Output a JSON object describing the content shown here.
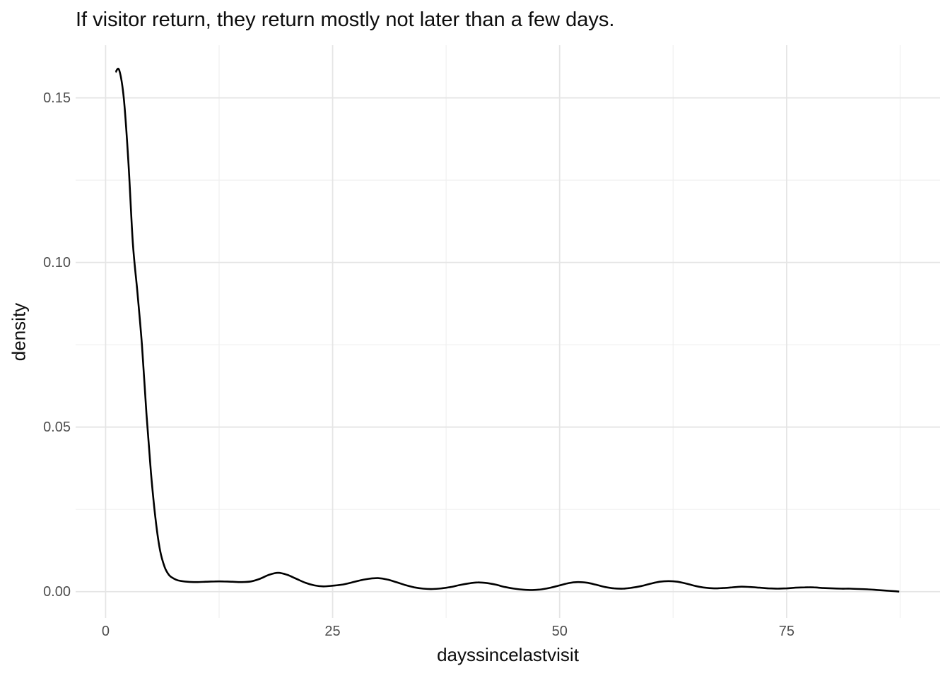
{
  "chart_data": {
    "type": "line",
    "title": "If visitor return, they return mostly not later than a few days.",
    "xlabel": "dayssincelastvisit",
    "ylabel": "density",
    "xlim": [
      -3.3,
      91.9
    ],
    "ylim": [
      -0.008,
      0.166
    ],
    "grid": "major+minor",
    "legend": "none",
    "x_ticks": {
      "values": [
        0,
        25,
        50,
        75
      ],
      "labels": [
        "0",
        "25",
        "50",
        "75"
      ],
      "minor": [
        12.5,
        37.5,
        62.5,
        87.5
      ]
    },
    "y_ticks": {
      "values": [
        0,
        0.05,
        0.1,
        0.15
      ],
      "labels": [
        "0.00",
        "0.05",
        "0.10",
        "0.15"
      ],
      "minor": [
        0.025,
        0.075,
        0.125
      ]
    },
    "series": [
      {
        "name": "density",
        "color": "#000000",
        "points": [
          [
            1.1,
            0.1578
          ],
          [
            1.5,
            0.1584
          ],
          [
            2,
            0.15
          ],
          [
            2.5,
            0.131
          ],
          [
            3,
            0.106
          ],
          [
            3.5,
            0.091
          ],
          [
            4,
            0.075
          ],
          [
            4.5,
            0.054
          ],
          [
            5,
            0.036
          ],
          [
            5.5,
            0.022
          ],
          [
            6,
            0.0125
          ],
          [
            6.5,
            0.0075
          ],
          [
            7,
            0.005
          ],
          [
            7.5,
            0.004
          ],
          [
            8,
            0.0034
          ],
          [
            9,
            0.003
          ],
          [
            10,
            0.0029
          ],
          [
            11,
            0.003
          ],
          [
            12,
            0.0031
          ],
          [
            13,
            0.0031
          ],
          [
            14,
            0.003
          ],
          [
            15,
            0.0029
          ],
          [
            16,
            0.0031
          ],
          [
            17,
            0.0039
          ],
          [
            18,
            0.0051
          ],
          [
            19,
            0.0057
          ],
          [
            20,
            0.0051
          ],
          [
            21,
            0.0039
          ],
          [
            22,
            0.0027
          ],
          [
            23,
            0.0019
          ],
          [
            24,
            0.0016
          ],
          [
            25,
            0.0018
          ],
          [
            26,
            0.0021
          ],
          [
            27,
            0.0027
          ],
          [
            28,
            0.0034
          ],
          [
            29,
            0.0039
          ],
          [
            30,
            0.0041
          ],
          [
            31,
            0.0037
          ],
          [
            32,
            0.0029
          ],
          [
            33,
            0.002
          ],
          [
            34,
            0.0013
          ],
          [
            35,
            0.0009
          ],
          [
            36,
            0.0008
          ],
          [
            37,
            0.001
          ],
          [
            38,
            0.0014
          ],
          [
            39,
            0.002
          ],
          [
            40,
            0.0025
          ],
          [
            41,
            0.0028
          ],
          [
            42,
            0.0026
          ],
          [
            43,
            0.0021
          ],
          [
            44,
            0.0014
          ],
          [
            45,
            0.0009
          ],
          [
            46,
            0.0006
          ],
          [
            47,
            0.0005
          ],
          [
            48,
            0.0007
          ],
          [
            49,
            0.0012
          ],
          [
            50,
            0.0019
          ],
          [
            51,
            0.0026
          ],
          [
            52,
            0.0029
          ],
          [
            53,
            0.0027
          ],
          [
            54,
            0.0021
          ],
          [
            55,
            0.0014
          ],
          [
            56,
            0.001
          ],
          [
            57,
            0.0009
          ],
          [
            58,
            0.0012
          ],
          [
            59,
            0.0017
          ],
          [
            60,
            0.0024
          ],
          [
            61,
            0.003
          ],
          [
            62,
            0.0032
          ],
          [
            63,
            0.003
          ],
          [
            64,
            0.0024
          ],
          [
            65,
            0.0017
          ],
          [
            66,
            0.0012
          ],
          [
            67,
            0.001
          ],
          [
            68,
            0.0011
          ],
          [
            69,
            0.0013
          ],
          [
            70,
            0.0015
          ],
          [
            71,
            0.0014
          ],
          [
            72,
            0.0012
          ],
          [
            73,
            0.001
          ],
          [
            74,
            0.0009
          ],
          [
            75,
            0.001
          ],
          [
            76,
            0.0012
          ],
          [
            77,
            0.0013
          ],
          [
            78,
            0.0013
          ],
          [
            79,
            0.0011
          ],
          [
            80,
            0.001
          ],
          [
            81,
            0.0009
          ],
          [
            82,
            0.0009
          ],
          [
            83,
            0.0008
          ],
          [
            84,
            0.0007
          ],
          [
            85,
            0.0005
          ],
          [
            86,
            0.0003
          ],
          [
            87,
            0.0001
          ],
          [
            87.4,
            0.0
          ]
        ]
      }
    ]
  },
  "colors": {
    "background": "#ffffff",
    "grid_major": "#e5e5e5",
    "grid_minor": "#f0f0f0",
    "tick_label": "#4d4d4d",
    "title_text": "#0d0d0d",
    "line": "#000000"
  }
}
